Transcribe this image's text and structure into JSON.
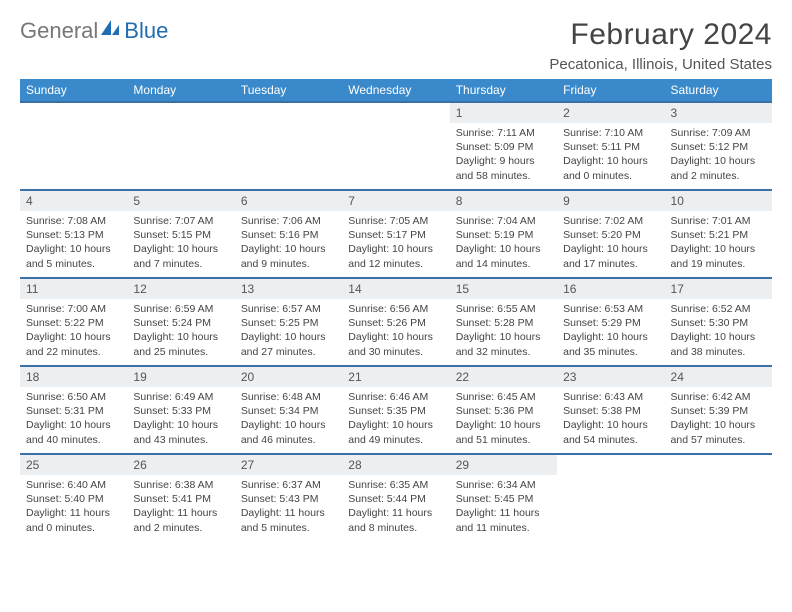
{
  "brand": {
    "general": "General",
    "blue": "Blue"
  },
  "title": "February 2024",
  "location": "Pecatonica, Illinois, United States",
  "colors": {
    "header_bg": "#3a8acb",
    "header_text": "#ffffff",
    "row_border": "#3a6fa8",
    "daynum_bg": "#eceff1",
    "brand_blue": "#1f6db3",
    "text": "#444444"
  },
  "weekdays": [
    "Sunday",
    "Monday",
    "Tuesday",
    "Wednesday",
    "Thursday",
    "Friday",
    "Saturday"
  ],
  "weeks": [
    [
      {
        "empty": true
      },
      {
        "empty": true
      },
      {
        "empty": true
      },
      {
        "empty": true
      },
      {
        "n": "1",
        "sunrise": "7:11 AM",
        "sunset": "5:09 PM",
        "daylight": "9 hours and 58 minutes."
      },
      {
        "n": "2",
        "sunrise": "7:10 AM",
        "sunset": "5:11 PM",
        "daylight": "10 hours and 0 minutes."
      },
      {
        "n": "3",
        "sunrise": "7:09 AM",
        "sunset": "5:12 PM",
        "daylight": "10 hours and 2 minutes."
      }
    ],
    [
      {
        "n": "4",
        "sunrise": "7:08 AM",
        "sunset": "5:13 PM",
        "daylight": "10 hours and 5 minutes."
      },
      {
        "n": "5",
        "sunrise": "7:07 AM",
        "sunset": "5:15 PM",
        "daylight": "10 hours and 7 minutes."
      },
      {
        "n": "6",
        "sunrise": "7:06 AM",
        "sunset": "5:16 PM",
        "daylight": "10 hours and 9 minutes."
      },
      {
        "n": "7",
        "sunrise": "7:05 AM",
        "sunset": "5:17 PM",
        "daylight": "10 hours and 12 minutes."
      },
      {
        "n": "8",
        "sunrise": "7:04 AM",
        "sunset": "5:19 PM",
        "daylight": "10 hours and 14 minutes."
      },
      {
        "n": "9",
        "sunrise": "7:02 AM",
        "sunset": "5:20 PM",
        "daylight": "10 hours and 17 minutes."
      },
      {
        "n": "10",
        "sunrise": "7:01 AM",
        "sunset": "5:21 PM",
        "daylight": "10 hours and 19 minutes."
      }
    ],
    [
      {
        "n": "11",
        "sunrise": "7:00 AM",
        "sunset": "5:22 PM",
        "daylight": "10 hours and 22 minutes."
      },
      {
        "n": "12",
        "sunrise": "6:59 AM",
        "sunset": "5:24 PM",
        "daylight": "10 hours and 25 minutes."
      },
      {
        "n": "13",
        "sunrise": "6:57 AM",
        "sunset": "5:25 PM",
        "daylight": "10 hours and 27 minutes."
      },
      {
        "n": "14",
        "sunrise": "6:56 AM",
        "sunset": "5:26 PM",
        "daylight": "10 hours and 30 minutes."
      },
      {
        "n": "15",
        "sunrise": "6:55 AM",
        "sunset": "5:28 PM",
        "daylight": "10 hours and 32 minutes."
      },
      {
        "n": "16",
        "sunrise": "6:53 AM",
        "sunset": "5:29 PM",
        "daylight": "10 hours and 35 minutes."
      },
      {
        "n": "17",
        "sunrise": "6:52 AM",
        "sunset": "5:30 PM",
        "daylight": "10 hours and 38 minutes."
      }
    ],
    [
      {
        "n": "18",
        "sunrise": "6:50 AM",
        "sunset": "5:31 PM",
        "daylight": "10 hours and 40 minutes."
      },
      {
        "n": "19",
        "sunrise": "6:49 AM",
        "sunset": "5:33 PM",
        "daylight": "10 hours and 43 minutes."
      },
      {
        "n": "20",
        "sunrise": "6:48 AM",
        "sunset": "5:34 PM",
        "daylight": "10 hours and 46 minutes."
      },
      {
        "n": "21",
        "sunrise": "6:46 AM",
        "sunset": "5:35 PM",
        "daylight": "10 hours and 49 minutes."
      },
      {
        "n": "22",
        "sunrise": "6:45 AM",
        "sunset": "5:36 PM",
        "daylight": "10 hours and 51 minutes."
      },
      {
        "n": "23",
        "sunrise": "6:43 AM",
        "sunset": "5:38 PM",
        "daylight": "10 hours and 54 minutes."
      },
      {
        "n": "24",
        "sunrise": "6:42 AM",
        "sunset": "5:39 PM",
        "daylight": "10 hours and 57 minutes."
      }
    ],
    [
      {
        "n": "25",
        "sunrise": "6:40 AM",
        "sunset": "5:40 PM",
        "daylight": "11 hours and 0 minutes."
      },
      {
        "n": "26",
        "sunrise": "6:38 AM",
        "sunset": "5:41 PM",
        "daylight": "11 hours and 2 minutes."
      },
      {
        "n": "27",
        "sunrise": "6:37 AM",
        "sunset": "5:43 PM",
        "daylight": "11 hours and 5 minutes."
      },
      {
        "n": "28",
        "sunrise": "6:35 AM",
        "sunset": "5:44 PM",
        "daylight": "11 hours and 8 minutes."
      },
      {
        "n": "29",
        "sunrise": "6:34 AM",
        "sunset": "5:45 PM",
        "daylight": "11 hours and 11 minutes."
      },
      {
        "empty": true
      },
      {
        "empty": true
      }
    ]
  ],
  "labels": {
    "sunrise": "Sunrise: ",
    "sunset": "Sunset: ",
    "daylight": "Daylight: "
  }
}
